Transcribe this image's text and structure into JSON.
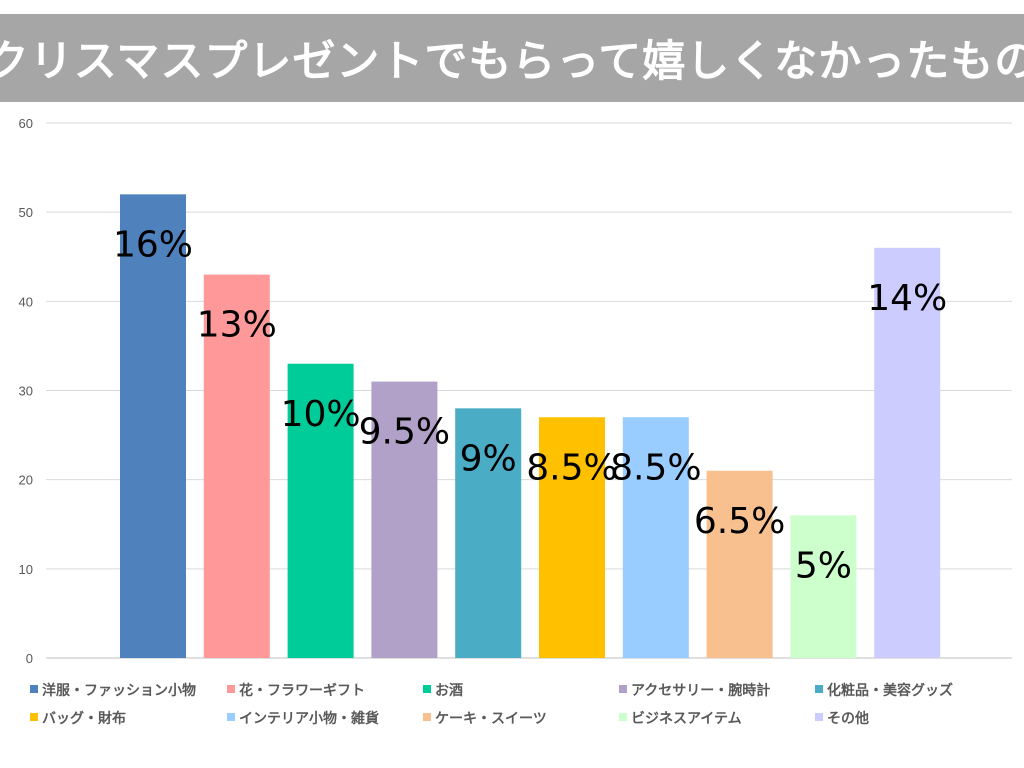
{
  "title": "クリスマスプレゼントでもらって嬉しくなかったもの",
  "chart_data": {
    "type": "bar",
    "title": "クリスマスプレゼントでもらって嬉しくなかったもの",
    "ylim": [
      0,
      60
    ],
    "yticks": [
      0,
      10,
      20,
      30,
      40,
      50,
      60
    ],
    "grid": true,
    "legend_position": "bottom",
    "categories": [
      "洋服・ファッション小物",
      "花・フラワーギフト",
      "お酒",
      "アクセサリー・腕時計",
      "化粧品・美容グッズ",
      "バッグ・財布",
      "インテリア小物・雑貨",
      "ケーキ・スイーツ",
      "ビジネスアイテム",
      "その他"
    ],
    "values": [
      52,
      43,
      33,
      31,
      28,
      27,
      27,
      21,
      16,
      46
    ],
    "labels": [
      "16%",
      "13%",
      "10%",
      "9.5%",
      "9%",
      "8.5%",
      "8.5%",
      "6.5%",
      "5%",
      "14%"
    ],
    "colors": [
      "#4f81bd",
      "#ff9999",
      "#00cc99",
      "#b1a0c7",
      "#4bacc6",
      "#ffc000",
      "#99ccff",
      "#f8c08f",
      "#ccffcc",
      "#ccccff"
    ]
  }
}
